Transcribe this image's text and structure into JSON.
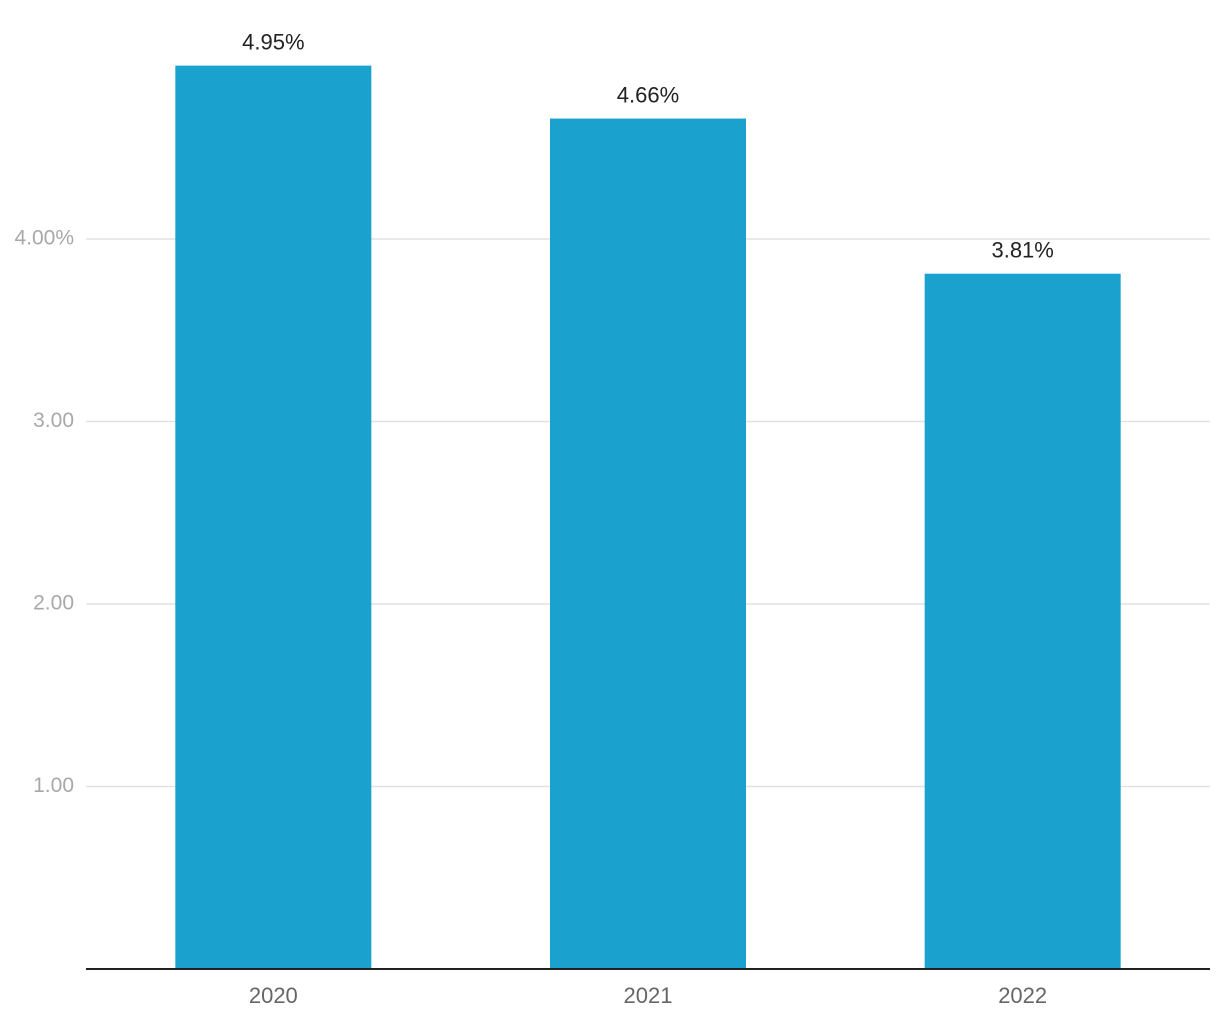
{
  "chart_data": {
    "type": "bar",
    "categories": [
      "2020",
      "2021",
      "2022"
    ],
    "values": [
      4.95,
      4.66,
      3.81
    ],
    "data_labels": [
      "4.95%",
      "4.66%",
      "3.81%"
    ],
    "y_ticks": [
      {
        "value": 1,
        "label": "1.00"
      },
      {
        "value": 2,
        "label": "2.00"
      },
      {
        "value": 3,
        "label": "3.00"
      },
      {
        "value": 4,
        "label": "4.00%"
      }
    ],
    "ylim": [
      0,
      5.2
    ],
    "grid": true,
    "bar_color": "#1aa1ce",
    "title": "",
    "xlabel": "",
    "ylabel": ""
  }
}
